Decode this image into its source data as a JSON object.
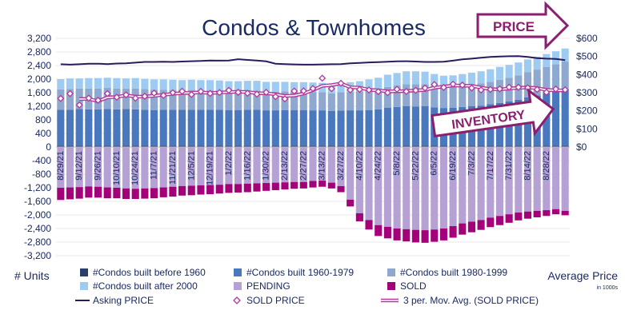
{
  "chart_data": {
    "type": "bar",
    "title": "Condos & Townhomes",
    "ylabel": "# Units",
    "y2label": "Average Price",
    "y2sublabel": "in 1000s",
    "ylim": [
      -3200,
      3200
    ],
    "y2lim": [
      0,
      600
    ],
    "yticks": [
      "3,200",
      "2,800",
      "2,400",
      "2,000",
      "1,600",
      "1,200",
      "800",
      "400",
      "0",
      "-400",
      "-800",
      "-1,200",
      "-1,600",
      "-2,000",
      "-2,400",
      "-2,800",
      "-3,200"
    ],
    "y2ticks": [
      "$600",
      "$500",
      "$400",
      "$300",
      "$200",
      "$100",
      "$0"
    ],
    "xticks": [
      "8/29/21",
      "9/12/21",
      "9/26/21",
      "10/10/21",
      "10/24/21",
      "11/7/21",
      "11/21/21",
      "12/5/21",
      "12/19/21",
      "1/2/22",
      "1/16/22",
      "1/30/22",
      "2/13/22",
      "2/27/22",
      "3/13/22",
      "3/27/22",
      "4/10/22",
      "4/24/22",
      "5/8/22",
      "5/22/22",
      "6/5/22",
      "6/19/22",
      "7/3/22",
      "7/17/22",
      "7/31/22",
      "8/14/22",
      "8/28/22"
    ],
    "callout_price": "PRICE",
    "callout_inventory": "INVENTORY",
    "colors": {
      "built_before_1960": "#2a3f6b",
      "built_1960_1979": "#4a78bf",
      "built_1980_1999": "#8ea8cf",
      "built_after_2000": "#9ecbf2",
      "pending": "#b5a1d4",
      "sold": "#a3007a",
      "asking": "#2d1a5c",
      "sold_price": "#b4399b",
      "title": "#1a2a63",
      "callout": "#8b1e6e"
    },
    "series": [
      {
        "name": "#Condos built before 1960",
        "values": [
          40,
          40,
          40,
          40,
          40,
          40,
          40,
          40,
          40,
          40,
          40,
          40,
          40,
          40,
          40,
          40,
          40,
          40,
          40,
          40,
          40,
          40,
          40,
          40,
          40,
          40,
          40,
          40,
          40,
          40,
          40,
          40,
          40,
          40,
          40,
          40,
          40,
          40,
          40,
          40,
          40,
          40,
          40,
          40,
          40,
          40,
          40,
          40,
          40,
          40,
          40,
          40,
          40,
          40,
          40
        ]
      },
      {
        "name": "#Condos built 1960-1979",
        "values": [
          1060,
          1060,
          1080,
          1070,
          1070,
          1080,
          1070,
          1080,
          1070,
          1060,
          1050,
          1060,
          1060,
          1060,
          1060,
          1060,
          1060,
          1060,
          1050,
          1050,
          1060,
          1060,
          1040,
          1040,
          1050,
          1050,
          1050,
          1040,
          1040,
          1020,
          1030,
          1040,
          1040,
          1050,
          1070,
          1120,
          1140,
          1160,
          1150,
          1160,
          1130,
          1110,
          1120,
          1140,
          1160,
          1180,
          1220,
          1260,
          1300,
          1350,
          1420,
          1480,
          1540,
          1600,
          1660
        ]
      },
      {
        "name": "#Condos built 1980-1999",
        "values": [
          600,
          610,
          600,
          610,
          610,
          620,
          610,
          600,
          610,
          610,
          600,
          590,
          580,
          580,
          580,
          570,
          570,
          560,
          560,
          560,
          560,
          560,
          550,
          550,
          550,
          540,
          540,
          540,
          530,
          520,
          540,
          540,
          560,
          580,
          590,
          610,
          630,
          650,
          660,
          650,
          630,
          620,
          620,
          630,
          640,
          650,
          660,
          680,
          700,
          720,
          740,
          760,
          780,
          800,
          820
        ]
      },
      {
        "name": "#Condos built after 2000",
        "values": [
          300,
          310,
          300,
          310,
          310,
          300,
          310,
          300,
          310,
          300,
          300,
          300,
          300,
          290,
          300,
          300,
          300,
          300,
          290,
          290,
          290,
          290,
          290,
          290,
          280,
          280,
          280,
          280,
          280,
          280,
          290,
          290,
          300,
          320,
          340,
          360,
          370,
          380,
          380,
          370,
          350,
          330,
          330,
          340,
          350,
          360,
          370,
          380,
          380,
          380,
          380,
          380,
          380,
          380,
          380
        ]
      },
      {
        "name": "PENDING",
        "values": [
          -1200,
          -1190,
          -1180,
          -1160,
          -1170,
          -1190,
          -1200,
          -1220,
          -1230,
          -1220,
          -1210,
          -1190,
          -1170,
          -1150,
          -1140,
          -1130,
          -1120,
          -1110,
          -1090,
          -1090,
          -1080,
          -1070,
          -1060,
          -1050,
          -1040,
          -1030,
          -1030,
          -1000,
          -990,
          -1050,
          -1150,
          -1550,
          -1950,
          -2150,
          -2300,
          -2350,
          -2400,
          -2420,
          -2440,
          -2450,
          -2430,
          -2400,
          -2330,
          -2250,
          -2200,
          -2150,
          -2080,
          -2030,
          -1980,
          -1930,
          -1900,
          -1880,
          -1860,
          -1830,
          -1880
        ]
      },
      {
        "name": "SOLD",
        "values": [
          -360,
          -350,
          -340,
          -330,
          -320,
          -320,
          -310,
          -310,
          -300,
          -300,
          -300,
          -290,
          -290,
          -280,
          -280,
          -270,
          -270,
          -260,
          -260,
          -250,
          -250,
          -240,
          -230,
          -220,
          -210,
          -200,
          -190,
          -190,
          -180,
          -170,
          -180,
          -200,
          -240,
          -280,
          -320,
          -340,
          -350,
          -360,
          -370,
          -370,
          -360,
          -350,
          -340,
          -330,
          -310,
          -290,
          -280,
          -270,
          -250,
          -230,
          -210,
          -190,
          -170,
          -150,
          -130
        ]
      },
      {
        "name": "Asking PRICE",
        "values": [
          457,
          455,
          457,
          460,
          460,
          458,
          461,
          462,
          466,
          470,
          470,
          471,
          470,
          472,
          474,
          475,
          478,
          477,
          478,
          485,
          481,
          478,
          473,
          460,
          458,
          456,
          455,
          455,
          456,
          457,
          458,
          462,
          464,
          467,
          469,
          471,
          473,
          474,
          472,
          470,
          470,
          471,
          477,
          484,
          488,
          493,
          497,
          500,
          501,
          502,
          497,
          491,
          488,
          486,
          480
        ]
      },
      {
        "name": "SOLD PRICE",
        "values": [
          268,
          295,
          232,
          270,
          258,
          295,
          275,
          288,
          270,
          280,
          298,
          285,
          300,
          308,
          290,
          307,
          296,
          301,
          313,
          302,
          297,
          292,
          302,
          278,
          266,
          309,
          310,
          323,
          380,
          322,
          352,
          315,
          318,
          315,
          306,
          300,
          319,
          307,
          313,
          326,
          345,
          329,
          347,
          342,
          326,
          315,
          318,
          321,
          330,
          330,
          327,
          318,
          302,
          320,
          316
        ]
      },
      {
        "name": "3 per. Mov. Avg. (SOLD PRICE)",
        "values": [
          null,
          null,
          265,
          266,
          253,
          274,
          276,
          286,
          278,
          279,
          283,
          288,
          294,
          298,
          299,
          302,
          298,
          301,
          303,
          305,
          304,
          297,
          297,
          291,
          282,
          284,
          295,
          314,
          338,
          342,
          351,
          330,
          328,
          316,
          313,
          307,
          308,
          309,
          313,
          315,
          328,
          333,
          340,
          339,
          338,
          328,
          320,
          318,
          323,
          327,
          329,
          325,
          316,
          313,
          313
        ]
      }
    ]
  }
}
